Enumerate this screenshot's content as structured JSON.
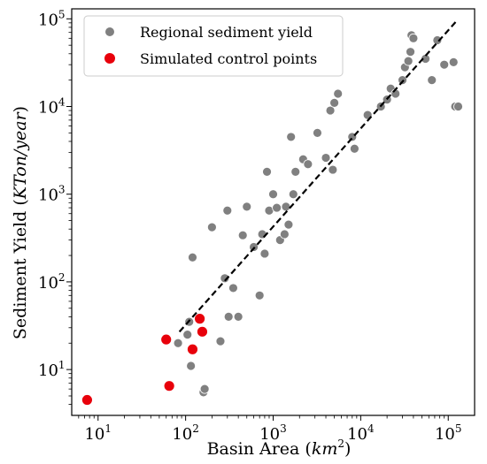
{
  "chart_data": {
    "type": "scatter",
    "xlabel_text": "Basin Area (",
    "xlabel_math": "km",
    "xlabel_exp": "2",
    "xlabel_close": ")",
    "ylabel_text": "Sediment Yield (",
    "ylabel_math": "KTon/year",
    "ylabel_close": ")",
    "xscale": "log",
    "yscale": "log",
    "xlim": [
      5,
      200000
    ],
    "ylim": [
      3,
      130000
    ],
    "x_ticks": [
      {
        "value": 10,
        "base": "10",
        "exp": "1"
      },
      {
        "value": 100,
        "base": "10",
        "exp": "2"
      },
      {
        "value": 1000,
        "base": "10",
        "exp": "3"
      },
      {
        "value": 10000,
        "base": "10",
        "exp": "4"
      },
      {
        "value": 100000,
        "base": "10",
        "exp": "5"
      }
    ],
    "y_ticks": [
      {
        "value": 10,
        "base": "10",
        "exp": "1"
      },
      {
        "value": 100,
        "base": "10",
        "exp": "2"
      },
      {
        "value": 1000,
        "base": "10",
        "exp": "3"
      },
      {
        "value": 10000,
        "base": "10",
        "exp": "4"
      },
      {
        "value": 100000,
        "base": "10",
        "exp": "5"
      }
    ],
    "grid": false,
    "legend_position": "top-left",
    "series": [
      {
        "name": "Regional sediment yield",
        "color": "#808080",
        "points": [
          {
            "x": 82,
            "y": 20
          },
          {
            "x": 105,
            "y": 25
          },
          {
            "x": 110,
            "y": 35
          },
          {
            "x": 115,
            "y": 11
          },
          {
            "x": 120,
            "y": 190
          },
          {
            "x": 160,
            "y": 5.5
          },
          {
            "x": 165,
            "y": 6
          },
          {
            "x": 200,
            "y": 420
          },
          {
            "x": 250,
            "y": 21
          },
          {
            "x": 280,
            "y": 110
          },
          {
            "x": 300,
            "y": 650
          },
          {
            "x": 310,
            "y": 40
          },
          {
            "x": 350,
            "y": 85
          },
          {
            "x": 400,
            "y": 40
          },
          {
            "x": 450,
            "y": 340
          },
          {
            "x": 500,
            "y": 720
          },
          {
            "x": 600,
            "y": 250
          },
          {
            "x": 700,
            "y": 70
          },
          {
            "x": 750,
            "y": 350
          },
          {
            "x": 800,
            "y": 210
          },
          {
            "x": 850,
            "y": 1800
          },
          {
            "x": 900,
            "y": 650
          },
          {
            "x": 1000,
            "y": 1000
          },
          {
            "x": 1100,
            "y": 700
          },
          {
            "x": 1200,
            "y": 300
          },
          {
            "x": 1350,
            "y": 350
          },
          {
            "x": 1400,
            "y": 720
          },
          {
            "x": 1500,
            "y": 450
          },
          {
            "x": 1600,
            "y": 4500
          },
          {
            "x": 1700,
            "y": 1000
          },
          {
            "x": 1800,
            "y": 1800
          },
          {
            "x": 2200,
            "y": 2500
          },
          {
            "x": 2500,
            "y": 2200
          },
          {
            "x": 3200,
            "y": 5000
          },
          {
            "x": 4000,
            "y": 2600
          },
          {
            "x": 4500,
            "y": 9000
          },
          {
            "x": 4800,
            "y": 1900
          },
          {
            "x": 5000,
            "y": 11000
          },
          {
            "x": 5500,
            "y": 14000
          },
          {
            "x": 8000,
            "y": 4500
          },
          {
            "x": 8500,
            "y": 3300
          },
          {
            "x": 12000,
            "y": 8000
          },
          {
            "x": 17000,
            "y": 10000
          },
          {
            "x": 20000,
            "y": 12000
          },
          {
            "x": 22000,
            "y": 16000
          },
          {
            "x": 25000,
            "y": 14000
          },
          {
            "x": 30000,
            "y": 20000
          },
          {
            "x": 32000,
            "y": 28000
          },
          {
            "x": 35000,
            "y": 33000
          },
          {
            "x": 37000,
            "y": 42000
          },
          {
            "x": 38000,
            "y": 65000
          },
          {
            "x": 40000,
            "y": 60000
          },
          {
            "x": 55000,
            "y": 35000
          },
          {
            "x": 65000,
            "y": 20000
          },
          {
            "x": 75000,
            "y": 57000
          },
          {
            "x": 90000,
            "y": 30000
          },
          {
            "x": 115000,
            "y": 32000
          },
          {
            "x": 120000,
            "y": 10000
          },
          {
            "x": 130000,
            "y": 10000
          }
        ]
      },
      {
        "name": "Simulated control points",
        "color": "#e8000b",
        "points": [
          {
            "x": 7.5,
            "y": 4.5
          },
          {
            "x": 60,
            "y": 22
          },
          {
            "x": 65,
            "y": 6.5
          },
          {
            "x": 120,
            "y": 17
          },
          {
            "x": 145,
            "y": 38
          },
          {
            "x": 155,
            "y": 27
          }
        ]
      }
    ],
    "trendline": {
      "style": "dashed",
      "color": "#000000",
      "from": {
        "x": 85,
        "y": 27
      },
      "to": {
        "x": 125000,
        "y": 95000
      }
    }
  }
}
